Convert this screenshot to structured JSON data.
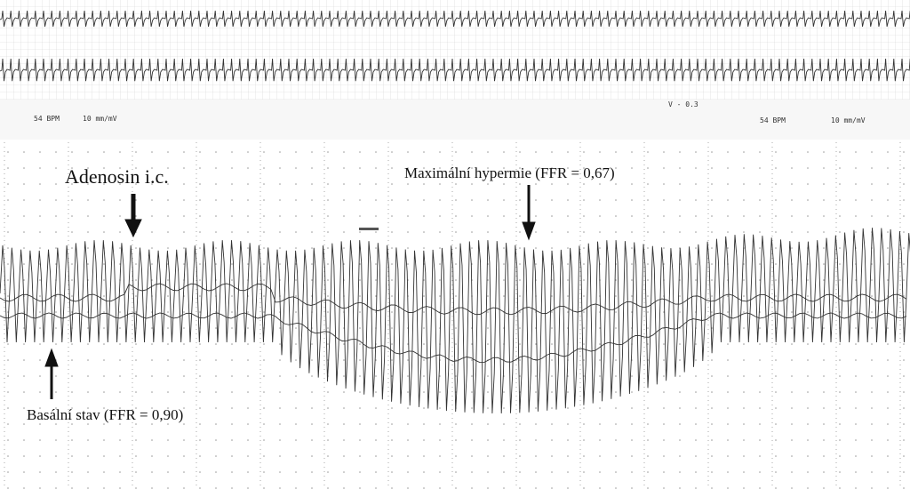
{
  "header_strip": {
    "left": {
      "rate": "54 BPM",
      "scale": "10 mm/mV"
    },
    "right": {
      "rate": "54 BPM",
      "scale": "10 mm/mV"
    },
    "lead_label": "V - 0.3"
  },
  "annotations": {
    "adenosine": "Adenosin i.c.",
    "max_hyperemia": "Maximální hypermie (FFR = 0,67)",
    "baseline": "Basální stav (FFR = 0,90)"
  }
}
